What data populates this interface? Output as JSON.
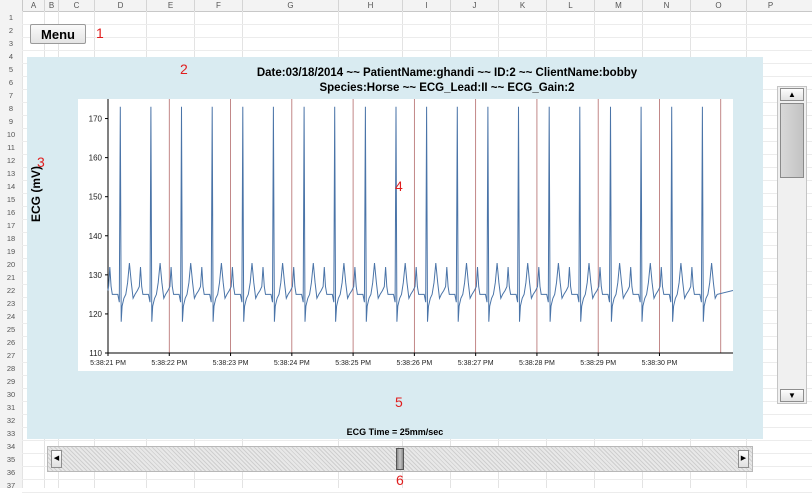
{
  "sheet": {
    "columns": [
      "A",
      "B",
      "C",
      "D",
      "E",
      "F",
      "G",
      "H",
      "I",
      "J",
      "K",
      "L",
      "M",
      "N",
      "O",
      "P"
    ],
    "rows": [
      "1",
      "2",
      "3",
      "4",
      "5",
      "6",
      "7",
      "8",
      "9",
      "10",
      "11",
      "12",
      "13",
      "14",
      "15",
      "16",
      "17",
      "18",
      "19",
      "20",
      "21",
      "22",
      "23",
      "24",
      "25",
      "26",
      "27",
      "28",
      "29",
      "30",
      "31",
      "32",
      "33",
      "34",
      "35",
      "36",
      "37"
    ]
  },
  "menu_button": {
    "label": "Menu"
  },
  "markers": {
    "m1": "1",
    "m2": "2",
    "m3": "3",
    "m4": "4",
    "m5": "5",
    "m6": "6"
  },
  "header": {
    "line1": "Date:03/18/2014 ~~ PatientName:ghandi ~~ ID:2 ~~ ClientName:bobby",
    "line2": "Species:Horse ~~ ECG_Lead:II ~~ ECG_Gain:2"
  },
  "scroll": {
    "up_icon": "▲",
    "down_icon": "▼",
    "left_icon": "◀",
    "right_icon": "▶"
  },
  "chart_data": {
    "type": "line",
    "title": "",
    "ylabel": "ECG (mV)",
    "xlabel": "ECG Time = 25mm/sec",
    "ylim": [
      110,
      175
    ],
    "yticks": [
      110,
      120,
      130,
      140,
      150,
      160,
      170
    ],
    "xticks": [
      "5:38:21 PM",
      "5:38:22 PM",
      "5:38:23 PM",
      "5:38:24 PM",
      "5:38:25 PM",
      "5:38:26 PM",
      "5:38:27 PM",
      "5:38:28 PM",
      "5:38:29 PM",
      "5:38:30 PM"
    ],
    "xlim_seconds": [
      0,
      10.2
    ],
    "baseline": 126,
    "beats_seconds": [
      0.2,
      0.7,
      1.2,
      1.7,
      2.2,
      2.7,
      3.2,
      3.7,
      4.2,
      4.7,
      5.2,
      5.7,
      6.2,
      6.7,
      7.2,
      7.7,
      8.2,
      8.7,
      9.2,
      9.7
    ],
    "r_peak": 173,
    "t_wave": 133,
    "p_wave": 132,
    "s_trough": 118,
    "grid": "vertical only",
    "line_color": "#4a74a8",
    "grid_color": "#b36a6a"
  }
}
